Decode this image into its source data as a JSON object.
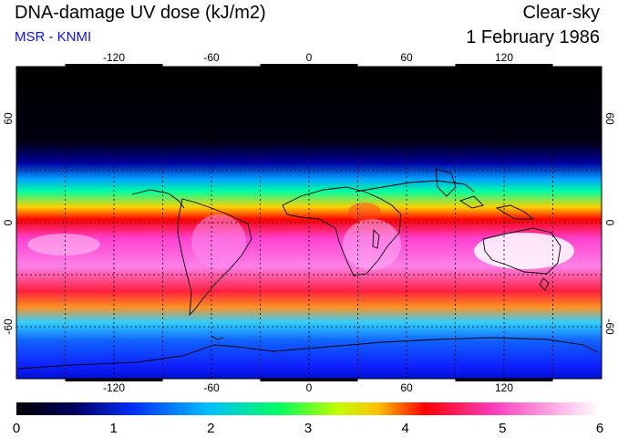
{
  "header": {
    "title": "DNA-damage UV dose (kJ/m2)",
    "source": "MSR - KNMI",
    "condition": "Clear-sky",
    "date": "1 February 1986"
  },
  "map": {
    "projection": "equirectangular",
    "lon_range": [
      -180,
      180
    ],
    "lat_range": [
      -90,
      90
    ],
    "lon_ticks": [
      "-120",
      "-60",
      "0",
      "60",
      "120"
    ],
    "lat_ticks": [
      "60",
      "0",
      "-60"
    ],
    "lat_ticks_right": [
      "60",
      "0",
      "-60"
    ],
    "gridlines": "dashed every 30 degrees",
    "coastlines": true
  },
  "colorbar": {
    "min": 0,
    "max": 6,
    "tick_labels": [
      "0",
      "1",
      "2",
      "3",
      "4",
      "5",
      "6"
    ],
    "colors": [
      "#000000",
      "#000060",
      "#0030ff",
      "#00c0ff",
      "#00ff60",
      "#c0ff00",
      "#ffc000",
      "#ff0000",
      "#ff40c0",
      "#ffffff"
    ]
  }
}
